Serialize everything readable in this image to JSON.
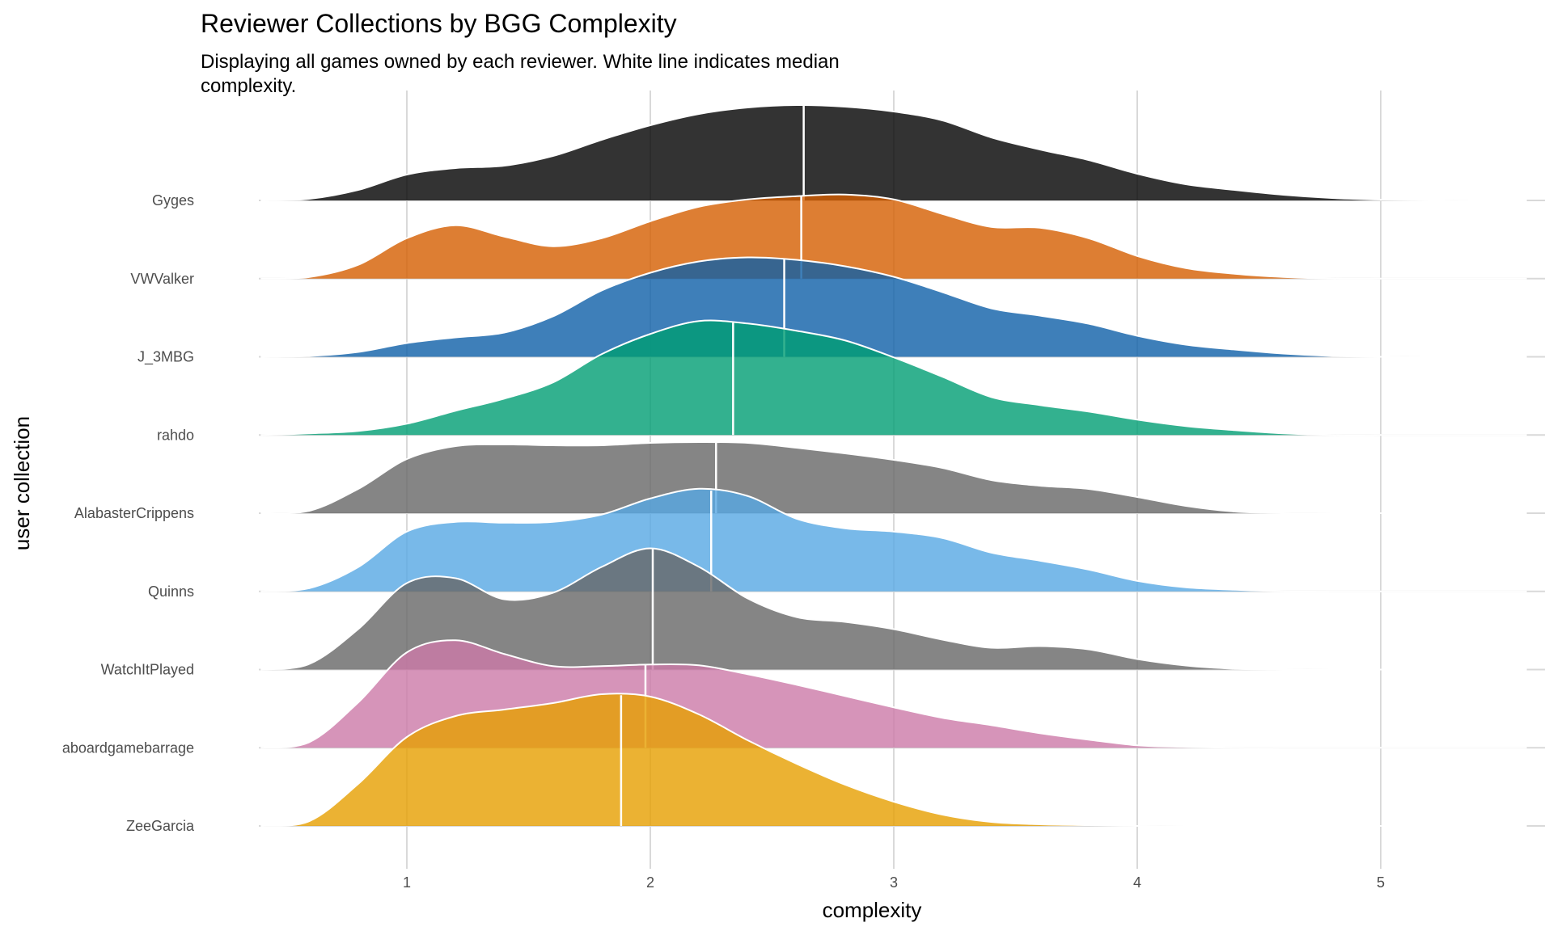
{
  "chart_data": {
    "type": "ridgeline",
    "title": "Reviewer Collections by BGG Complexity",
    "subtitle_lines": [
      "Displaying all games owned by each reviewer. White line indicates median",
      "complexity."
    ],
    "xlabel": "complexity",
    "ylabel": "user collection",
    "xlim": [
      0.4,
      5.6
    ],
    "x_ticks": [
      1,
      2,
      3,
      4,
      5
    ],
    "x_tick_labels": [
      "1",
      "2",
      "3",
      "4",
      "5"
    ],
    "grid": true,
    "categories": [
      "Gyges",
      "VWValker",
      "J_3MBG",
      "rahdo",
      "AlabasterCrippens",
      "Quinns",
      "WatchItPlayed",
      "aboardgamebarrage",
      "ZeeGarcia"
    ],
    "density_max": 1.35,
    "series": [
      {
        "name": "Gyges",
        "color": "#000000",
        "median": 2.63,
        "density_x": [
          0.4,
          0.6,
          0.8,
          1.0,
          1.2,
          1.4,
          1.6,
          1.8,
          2.0,
          2.2,
          2.4,
          2.6,
          2.8,
          3.0,
          3.2,
          3.4,
          3.6,
          3.8,
          4.0,
          4.2,
          4.4,
          4.6,
          4.8,
          5.0,
          5.2,
          5.4,
          5.6
        ],
        "density": [
          0.0,
          0.02,
          0.13,
          0.32,
          0.4,
          0.43,
          0.55,
          0.75,
          0.93,
          1.07,
          1.15,
          1.18,
          1.16,
          1.1,
          0.99,
          0.78,
          0.63,
          0.5,
          0.33,
          0.2,
          0.13,
          0.07,
          0.03,
          0.01,
          0.0,
          0.0,
          0.0
        ]
      },
      {
        "name": "VWValker",
        "color": "#d55e00",
        "median": 2.62,
        "density_x": [
          0.4,
          0.6,
          0.8,
          1.0,
          1.2,
          1.4,
          1.6,
          1.8,
          2.0,
          2.2,
          2.4,
          2.6,
          2.8,
          3.0,
          3.2,
          3.4,
          3.6,
          3.8,
          4.0,
          4.2,
          4.4,
          4.6,
          4.8,
          5.0,
          5.2,
          5.4,
          5.6
        ],
        "density": [
          0.0,
          0.02,
          0.17,
          0.5,
          0.66,
          0.52,
          0.4,
          0.5,
          0.71,
          0.89,
          0.98,
          1.02,
          1.04,
          0.98,
          0.8,
          0.64,
          0.63,
          0.5,
          0.28,
          0.13,
          0.06,
          0.02,
          0.0,
          0.0,
          0.0,
          0.0,
          0.0
        ]
      },
      {
        "name": "J_3MBG",
        "color": "#0e5fa8",
        "median": 2.55,
        "density_x": [
          0.4,
          0.6,
          0.8,
          1.0,
          1.2,
          1.4,
          1.6,
          1.8,
          2.0,
          2.2,
          2.4,
          2.6,
          2.8,
          3.0,
          3.2,
          3.4,
          3.6,
          3.8,
          4.0,
          4.2,
          4.4,
          4.6,
          4.8,
          5.0,
          5.2,
          5.4,
          5.6
        ],
        "density": [
          0.0,
          0.01,
          0.06,
          0.17,
          0.24,
          0.3,
          0.5,
          0.82,
          1.04,
          1.18,
          1.23,
          1.2,
          1.12,
          0.99,
          0.8,
          0.6,
          0.51,
          0.41,
          0.26,
          0.15,
          0.09,
          0.04,
          0.01,
          0.0,
          0.0,
          0.0,
          0.0
        ]
      },
      {
        "name": "rahdo",
        "color": "#009e73",
        "median": 2.34,
        "density_x": [
          0.4,
          0.6,
          0.8,
          1.0,
          1.2,
          1.4,
          1.6,
          1.8,
          2.0,
          2.2,
          2.4,
          2.6,
          2.8,
          3.0,
          3.2,
          3.4,
          3.6,
          3.8,
          4.0,
          4.2,
          4.4,
          4.6,
          4.8,
          5.0,
          5.2,
          5.4,
          5.6
        ],
        "density": [
          0.0,
          0.02,
          0.05,
          0.14,
          0.3,
          0.45,
          0.65,
          1.0,
          1.25,
          1.41,
          1.38,
          1.29,
          1.17,
          0.96,
          0.72,
          0.47,
          0.37,
          0.29,
          0.19,
          0.11,
          0.06,
          0.02,
          0.0,
          0.0,
          0.0,
          0.0,
          0.0
        ]
      },
      {
        "name": "AlabasterCrippens",
        "color": "#666666",
        "median": 2.27,
        "density_x": [
          0.4,
          0.6,
          0.8,
          1.0,
          1.2,
          1.4,
          1.6,
          1.8,
          2.0,
          2.2,
          2.4,
          2.6,
          2.8,
          3.0,
          3.2,
          3.4,
          3.6,
          3.8,
          4.0,
          4.2,
          4.4,
          4.6,
          4.8,
          5.0,
          5.2,
          5.4,
          5.6
        ],
        "density": [
          0.0,
          0.03,
          0.3,
          0.67,
          0.83,
          0.85,
          0.84,
          0.84,
          0.87,
          0.88,
          0.87,
          0.81,
          0.74,
          0.66,
          0.56,
          0.41,
          0.34,
          0.3,
          0.2,
          0.09,
          0.02,
          0.0,
          0.0,
          0.0,
          0.0,
          0.0,
          0.0
        ]
      },
      {
        "name": "Quinns",
        "color": "#56a8e4",
        "median": 2.25,
        "density_x": [
          0.4,
          0.6,
          0.8,
          1.0,
          1.2,
          1.4,
          1.6,
          1.8,
          2.0,
          2.2,
          2.4,
          2.6,
          2.8,
          3.0,
          3.2,
          3.4,
          3.6,
          3.8,
          4.0,
          4.2,
          4.4,
          4.6,
          4.8,
          5.0,
          5.2,
          5.4,
          5.6
        ],
        "density": [
          0.0,
          0.04,
          0.3,
          0.74,
          0.86,
          0.85,
          0.86,
          0.95,
          1.15,
          1.27,
          1.18,
          0.9,
          0.78,
          0.74,
          0.66,
          0.48,
          0.38,
          0.27,
          0.13,
          0.05,
          0.02,
          0.0,
          0.0,
          0.0,
          0.0,
          0.0,
          0.0
        ]
      },
      {
        "name": "WatchItPlayed",
        "color": "#666666",
        "median": 2.01,
        "density_x": [
          0.4,
          0.6,
          0.8,
          1.0,
          1.2,
          1.4,
          1.6,
          1.8,
          2.0,
          2.2,
          2.4,
          2.6,
          2.8,
          3.0,
          3.2,
          3.4,
          3.6,
          3.8,
          4.0,
          4.2,
          4.4,
          4.6,
          4.8,
          5.0,
          5.2,
          5.4,
          5.6
        ],
        "density": [
          0.0,
          0.07,
          0.5,
          1.07,
          1.13,
          0.87,
          0.95,
          1.27,
          1.5,
          1.27,
          0.88,
          0.65,
          0.59,
          0.5,
          0.37,
          0.27,
          0.29,
          0.25,
          0.13,
          0.05,
          0.01,
          0.0,
          0.0,
          0.0,
          0.0,
          0.0,
          0.0
        ]
      },
      {
        "name": "aboardgamebarrage",
        "color": "#cc79a7",
        "median": 1.98,
        "density_x": [
          0.4,
          0.6,
          0.8,
          1.0,
          1.2,
          1.4,
          1.6,
          1.8,
          2.0,
          2.2,
          2.4,
          2.6,
          2.8,
          3.0,
          3.2,
          3.4,
          3.6,
          3.8,
          4.0,
          4.2,
          4.4,
          4.6,
          4.8,
          5.0,
          5.2,
          5.4,
          5.6
        ],
        "density": [
          0.0,
          0.07,
          0.56,
          1.18,
          1.33,
          1.16,
          1.01,
          1.01,
          1.03,
          1.02,
          0.91,
          0.78,
          0.64,
          0.5,
          0.37,
          0.28,
          0.18,
          0.1,
          0.03,
          0.01,
          0.0,
          0.0,
          0.0,
          0.0,
          0.0,
          0.0,
          0.0
        ]
      },
      {
        "name": "ZeeGarcia",
        "color": "#e69f00",
        "median": 1.88,
        "density_x": [
          0.4,
          0.6,
          0.8,
          1.0,
          1.2,
          1.4,
          1.6,
          1.8,
          2.0,
          2.2,
          2.4,
          2.6,
          2.8,
          3.0,
          3.2,
          3.4,
          3.6,
          3.8,
          4.0,
          4.2,
          4.4,
          4.6,
          4.8,
          5.0,
          5.2,
          5.4,
          5.6
        ],
        "density": [
          0.0,
          0.06,
          0.52,
          1.1,
          1.36,
          1.44,
          1.52,
          1.63,
          1.6,
          1.38,
          1.06,
          0.77,
          0.51,
          0.3,
          0.14,
          0.05,
          0.02,
          0.01,
          0.0,
          0.0,
          0.0,
          0.0,
          0.0,
          0.0,
          0.0,
          0.0,
          0.0
        ]
      }
    ]
  }
}
